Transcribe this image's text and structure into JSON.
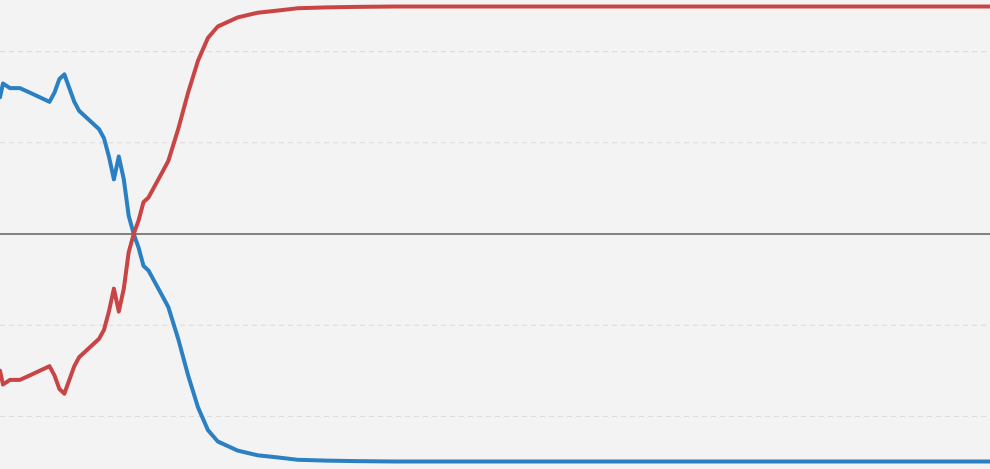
{
  "chart_data": {
    "type": "line",
    "title": "",
    "xlabel": "",
    "ylabel": "",
    "xlim": [
      0,
      100
    ],
    "ylim": [
      0,
      1
    ],
    "grid": true,
    "legend": "none",
    "reference_line": 0.5,
    "gridlines": [
      0.1,
      0.3,
      0.7,
      0.9
    ],
    "series": [
      {
        "color": "#2a80c2",
        "points": [
          [
            0,
            0.8
          ],
          [
            0.3,
            0.83
          ],
          [
            1,
            0.82
          ],
          [
            2,
            0.82
          ],
          [
            3,
            0.81
          ],
          [
            4,
            0.8
          ],
          [
            5,
            0.79
          ],
          [
            5.5,
            0.81
          ],
          [
            6,
            0.84
          ],
          [
            6.5,
            0.85
          ],
          [
            7,
            0.82
          ],
          [
            7.5,
            0.79
          ],
          [
            8,
            0.77
          ],
          [
            9,
            0.75
          ],
          [
            10,
            0.73
          ],
          [
            10.5,
            0.71
          ],
          [
            11,
            0.67
          ],
          [
            11.5,
            0.62
          ],
          [
            12,
            0.67
          ],
          [
            12.5,
            0.62
          ],
          [
            13,
            0.54
          ],
          [
            13.5,
            0.5
          ],
          [
            14,
            0.47
          ],
          [
            14.5,
            0.43
          ],
          [
            15,
            0.42
          ],
          [
            15.5,
            0.4
          ],
          [
            16,
            0.38
          ],
          [
            17,
            0.34
          ],
          [
            18,
            0.27
          ],
          [
            19,
            0.19
          ],
          [
            20,
            0.12
          ],
          [
            21,
            0.07
          ],
          [
            22,
            0.045
          ],
          [
            24,
            0.025
          ],
          [
            26,
            0.015
          ],
          [
            28,
            0.01
          ],
          [
            30,
            0.005
          ],
          [
            33,
            0.003
          ],
          [
            36,
            0.002
          ],
          [
            40,
            0.001
          ],
          [
            50,
            0.001
          ],
          [
            60,
            0.001
          ],
          [
            70,
            0.001
          ],
          [
            80,
            0.001
          ],
          [
            90,
            0.001
          ],
          [
            100,
            0.001
          ]
        ]
      },
      {
        "color": "#c94545",
        "points": [
          [
            0,
            0.2
          ],
          [
            0.3,
            0.17
          ],
          [
            1,
            0.18
          ],
          [
            2,
            0.18
          ],
          [
            3,
            0.19
          ],
          [
            4,
            0.2
          ],
          [
            5,
            0.21
          ],
          [
            5.5,
            0.19
          ],
          [
            6,
            0.16
          ],
          [
            6.5,
            0.15
          ],
          [
            7,
            0.18
          ],
          [
            7.5,
            0.21
          ],
          [
            8,
            0.23
          ],
          [
            9,
            0.25
          ],
          [
            10,
            0.27
          ],
          [
            10.5,
            0.29
          ],
          [
            11,
            0.33
          ],
          [
            11.5,
            0.38
          ],
          [
            12,
            0.33
          ],
          [
            12.5,
            0.38
          ],
          [
            13,
            0.46
          ],
          [
            13.5,
            0.5
          ],
          [
            14,
            0.53
          ],
          [
            14.5,
            0.57
          ],
          [
            15,
            0.58
          ],
          [
            15.5,
            0.6
          ],
          [
            16,
            0.62
          ],
          [
            17,
            0.66
          ],
          [
            18,
            0.73
          ],
          [
            19,
            0.81
          ],
          [
            20,
            0.88
          ],
          [
            21,
            0.93
          ],
          [
            22,
            0.955
          ],
          [
            24,
            0.975
          ],
          [
            26,
            0.985
          ],
          [
            28,
            0.99
          ],
          [
            30,
            0.995
          ],
          [
            33,
            0.997
          ],
          [
            36,
            0.998
          ],
          [
            40,
            0.999
          ],
          [
            50,
            0.999
          ],
          [
            60,
            0.999
          ],
          [
            70,
            0.999
          ],
          [
            80,
            0.999
          ],
          [
            90,
            0.999
          ],
          [
            100,
            0.999
          ]
        ]
      }
    ]
  }
}
